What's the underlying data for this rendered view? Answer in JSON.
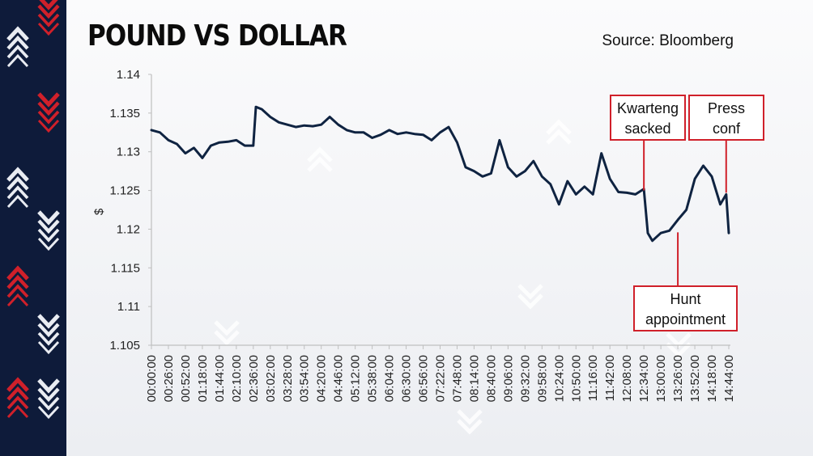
{
  "header": {
    "title": "POUND VS DOLLAR",
    "source": "Source: Bloomberg"
  },
  "colors": {
    "line": "#0f2341",
    "annotation_border": "#d0202a",
    "accent_red": "#d0202a",
    "accent_white": "#e9ecf2",
    "side_band": "#0e1b3a"
  },
  "chart_data": {
    "type": "line",
    "title": "POUND VS DOLLAR",
    "ylabel": "$",
    "xlabel": "",
    "ylim": [
      1.105,
      1.14
    ],
    "yticks": [
      "1.14",
      "1.135",
      "1.13",
      "1.125",
      "1.12",
      "1.115",
      "1.11",
      "1.105"
    ],
    "xticks": [
      "00:00:00",
      "00:26:00",
      "00:52:00",
      "01:18:00",
      "01:44:00",
      "02:10:00",
      "02:36:00",
      "03:02:00",
      "03:28:00",
      "03:54:00",
      "04:20:00",
      "04:46:00",
      "05:12:00",
      "05:38:00",
      "06:04:00",
      "06:30:00",
      "06:56:00",
      "07:22:00",
      "07:48:00",
      "08:14:00",
      "08:40:00",
      "09:06:00",
      "09:32:00",
      "09:58:00",
      "10:24:00",
      "10:50:00",
      "11:16:00",
      "11:42:00",
      "12:08:00",
      "12:34:00",
      "13:00:00",
      "13:26:00",
      "13:52:00",
      "14:18:00",
      "14:44:00"
    ],
    "grid": false,
    "series": [
      {
        "x": [
          "00:00:00",
          "00:13:00",
          "00:26:00",
          "00:39:00",
          "00:52:00",
          "01:05:00",
          "01:18:00",
          "01:31:00",
          "01:44:00",
          "01:57:00",
          "02:10:00",
          "02:23:00",
          "02:36:00",
          "02:40:00",
          "02:49:00",
          "03:02:00",
          "03:15:00",
          "03:28:00",
          "03:41:00",
          "03:54:00",
          "04:07:00",
          "04:20:00",
          "04:33:00",
          "04:46:00",
          "04:59:00",
          "05:12:00",
          "05:25:00",
          "05:38:00",
          "05:51:00",
          "06:04:00",
          "06:17:00",
          "06:30:00",
          "06:43:00",
          "06:56:00",
          "07:09:00",
          "07:22:00",
          "07:35:00",
          "07:48:00",
          "08:01:00",
          "08:14:00",
          "08:27:00",
          "08:40:00",
          "08:53:00",
          "09:06:00",
          "09:19:00",
          "09:32:00",
          "09:45:00",
          "09:58:00",
          "10:11:00",
          "10:24:00",
          "10:37:00",
          "10:50:00",
          "11:03:00",
          "11:16:00",
          "11:29:00",
          "11:42:00",
          "11:55:00",
          "12:08:00",
          "12:21:00",
          "12:34:00",
          "12:40:00",
          "12:47:00",
          "13:00:00",
          "13:13:00",
          "13:26:00",
          "13:39:00",
          "13:52:00",
          "14:05:00",
          "14:18:00",
          "14:31:00",
          "14:40:00",
          "14:44:00"
        ],
        "values": [
          1.1328,
          1.1325,
          1.1315,
          1.131,
          1.1298,
          1.1305,
          1.1292,
          1.1308,
          1.1312,
          1.1313,
          1.1315,
          1.1308,
          1.1308,
          1.1358,
          1.1355,
          1.1345,
          1.1338,
          1.1335,
          1.1332,
          1.1334,
          1.1333,
          1.1335,
          1.1345,
          1.1335,
          1.1328,
          1.1325,
          1.1325,
          1.1318,
          1.1322,
          1.1328,
          1.1323,
          1.1325,
          1.1323,
          1.1322,
          1.1315,
          1.1325,
          1.1332,
          1.1312,
          1.128,
          1.1275,
          1.1268,
          1.1272,
          1.1315,
          1.128,
          1.1268,
          1.1275,
          1.1288,
          1.1268,
          1.1258,
          1.1232,
          1.1262,
          1.1245,
          1.1255,
          1.1245,
          1.1298,
          1.1265,
          1.1248,
          1.1247,
          1.1245,
          1.1252,
          1.1195,
          1.1185,
          1.1195,
          1.1198,
          1.1212,
          1.1225,
          1.1265,
          1.1282,
          1.1268,
          1.1232,
          1.1245,
          1.1195
        ]
      }
    ],
    "annotations": [
      {
        "lines": [
          "Kwarteng",
          "sacked"
        ],
        "x": "12:34:00",
        "y": 1.1248,
        "box": "above"
      },
      {
        "lines": [
          "Press",
          "conf"
        ],
        "x": "14:40:00",
        "y": 1.1245,
        "box": "above"
      },
      {
        "lines": [
          "Hunt",
          "appointment"
        ],
        "x": "13:26:00",
        "y": 1.1198,
        "box": "below"
      }
    ]
  }
}
